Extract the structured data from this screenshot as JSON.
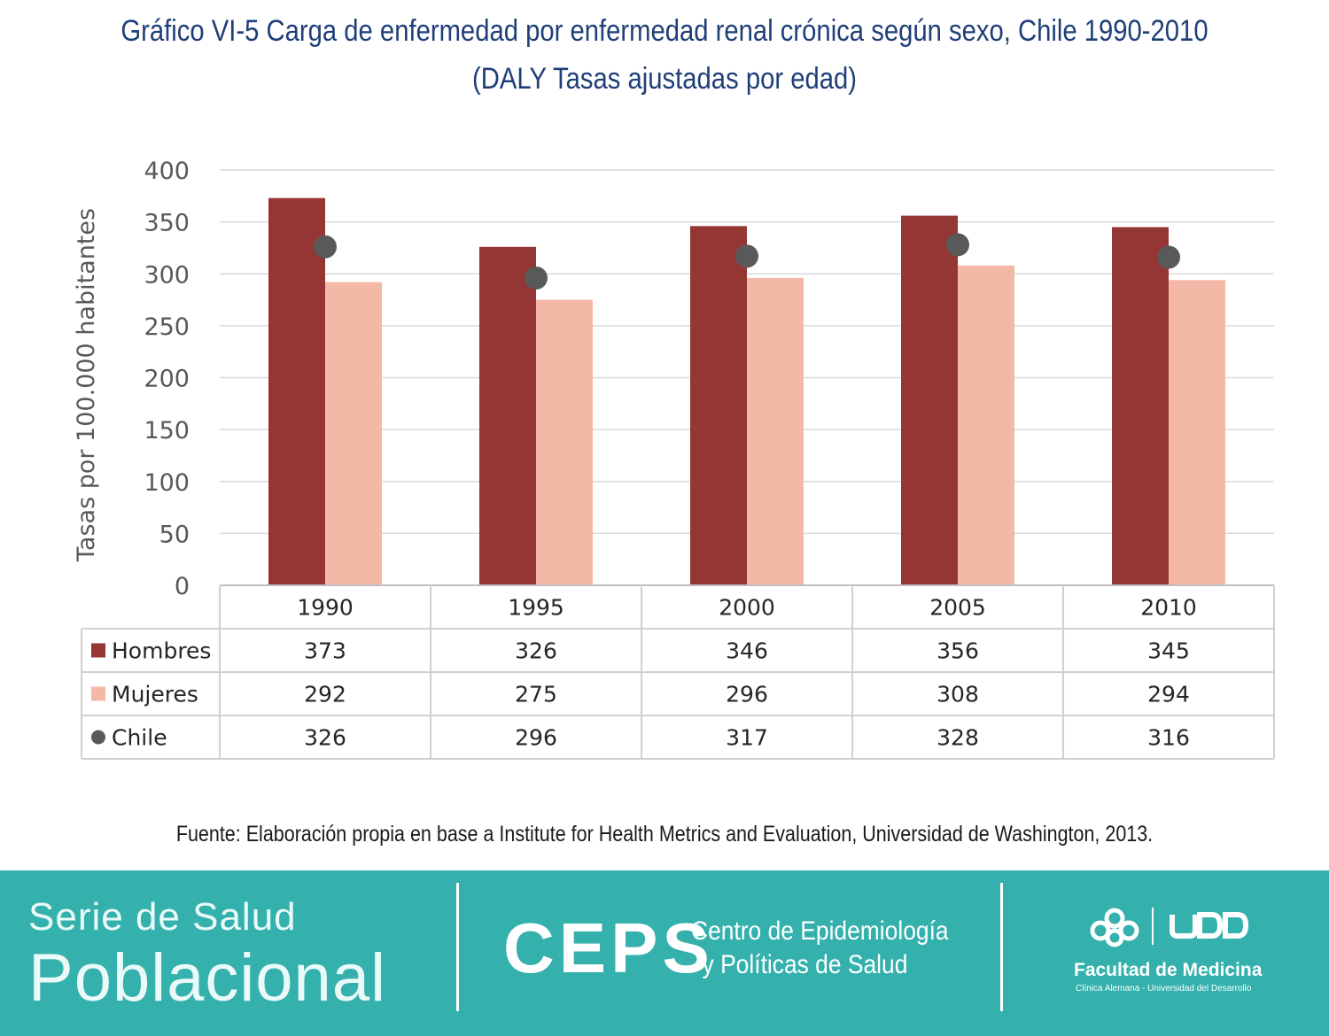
{
  "title_line1": "Gráfico VI-5 Carga de enfermedad por enfermedad renal crónica según sexo, Chile 1990-2010",
  "title_line2": "(DALY Tasas ajustadas por edad)",
  "chart_data": {
    "type": "bar",
    "ylabel": "Tasas por 100.000 habitantes",
    "ylim": [
      0,
      400
    ],
    "yticks": [
      0,
      50,
      100,
      150,
      200,
      250,
      300,
      350,
      400
    ],
    "grid": true,
    "data_table": true,
    "categories": [
      "1990",
      "1995",
      "2000",
      "2005",
      "2010"
    ],
    "series": [
      {
        "name": "Hombres",
        "type": "bar",
        "color": "#943634",
        "marker": "square",
        "values": [
          373,
          326,
          346,
          356,
          345
        ]
      },
      {
        "name": "Mujeres",
        "type": "bar",
        "color": "#f4b9a6",
        "marker": "square",
        "values": [
          292,
          275,
          296,
          308,
          294
        ]
      },
      {
        "name": "Chile",
        "type": "point",
        "color": "#595959",
        "marker": "circle",
        "values": [
          326,
          296,
          317,
          328,
          316
        ]
      }
    ]
  },
  "source": "Fuente: Elaboración propia en base a Institute for Health Metrics and Evaluation, Universidad de Washington, 2013.",
  "footer": {
    "background": "#34b1ad",
    "serie": "Serie de Salud",
    "poblacional": "Poblacional",
    "ceps": "CEPS",
    "ceps_line1": "Centro de Epidemiología",
    "ceps_line2": "y Políticas de Salud",
    "udd": "UDD",
    "facultad": "Facultad de Medicina",
    "facultad_sub": "Clínica Alemana - Universidad del Desarrollo"
  }
}
